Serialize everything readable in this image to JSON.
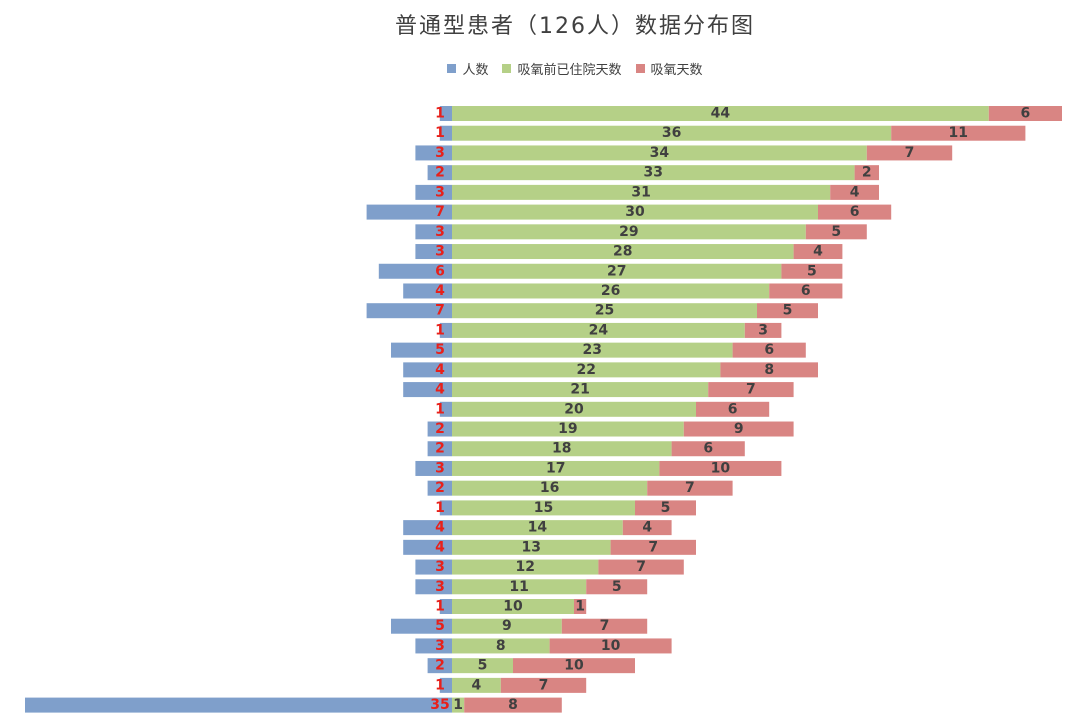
{
  "chart_data": {
    "type": "bar",
    "orientation": "horizontal",
    "stacked": true,
    "title": "普通型患者（126人）数据分布图",
    "legend_position": "top",
    "grid": false,
    "series": [
      {
        "name": "人数",
        "color": "#7f9fcb",
        "label_color": "#e8201a",
        "direction": "negative",
        "values": [
          1,
          1,
          3,
          2,
          3,
          7,
          3,
          3,
          6,
          4,
          7,
          1,
          5,
          4,
          4,
          1,
          2,
          2,
          3,
          2,
          1,
          4,
          4,
          3,
          3,
          1,
          5,
          3,
          2,
          1,
          35
        ]
      },
      {
        "name": "吸氧前已住院天数",
        "color": "#b5d087",
        "label_color": "#404040",
        "direction": "positive",
        "values": [
          44,
          36,
          34,
          33,
          31,
          30,
          29,
          28,
          27,
          26,
          25,
          24,
          23,
          22,
          21,
          20,
          19,
          18,
          17,
          16,
          15,
          14,
          13,
          12,
          11,
          10,
          9,
          8,
          5,
          4,
          1
        ]
      },
      {
        "name": "吸氧天数",
        "color": "#d98583",
        "label_color": "#404040",
        "direction": "positive",
        "values": [
          6,
          11,
          7,
          2,
          4,
          6,
          5,
          4,
          5,
          6,
          5,
          3,
          6,
          8,
          7,
          6,
          9,
          6,
          10,
          7,
          5,
          4,
          7,
          7,
          5,
          1,
          7,
          10,
          10,
          7,
          8
        ]
      }
    ]
  }
}
